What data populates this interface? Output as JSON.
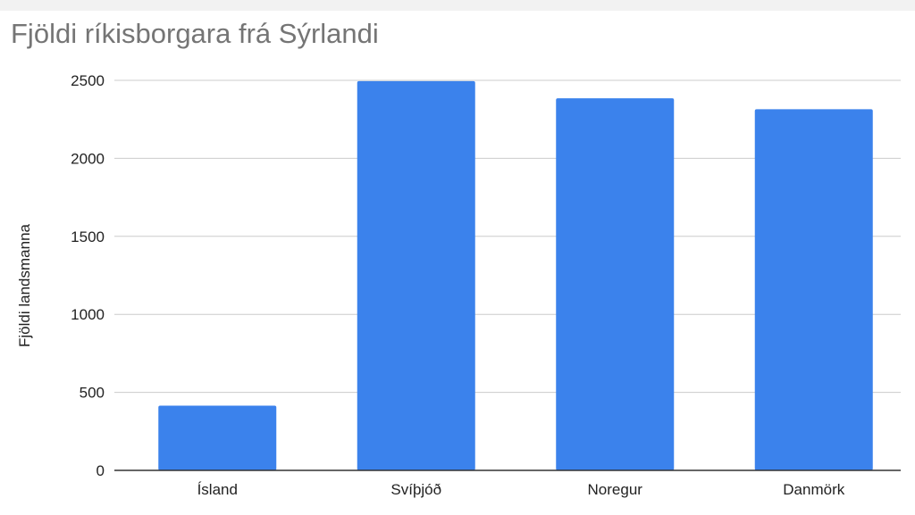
{
  "chart_data": {
    "type": "bar",
    "title": "Fjöldi ríkisborgara frá Sýrlandi",
    "xlabel": "",
    "ylabel": "Fjöldi landsmanna",
    "categories": [
      "Ísland",
      "Svíþjóð",
      "Noregur",
      "Danmörk"
    ],
    "values": [
      415,
      2495,
      2385,
      2315
    ],
    "ylim": [
      0,
      2500
    ],
    "yticks": [
      "0",
      "500",
      "1000",
      "1500",
      "2000",
      "2500"
    ],
    "grid": true,
    "legend": "none",
    "colors": {
      "bar": "#3b82ec",
      "grid": "#cccccc",
      "axis": "#333333",
      "title": "#757575"
    }
  }
}
